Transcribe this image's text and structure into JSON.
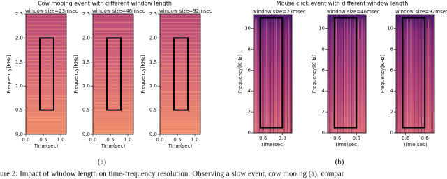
{
  "figures": [
    {
      "title": "Cow mooing event with different window length",
      "label": "(a)",
      "xlabel": "Time(sec)",
      "ylabel": "Frequency[KHz]",
      "xlim": [
        0,
        1.16
      ],
      "ylim": [
        0,
        2.5
      ],
      "xticks": [
        {
          "value": 0,
          "label": "0.0"
        },
        {
          "value": 0.5,
          "label": "0.5"
        },
        {
          "value": 1,
          "label": "1.0"
        }
      ],
      "yticks": [
        {
          "value": 0,
          "label": "0.0"
        },
        {
          "value": 0.5,
          "label": "0.5"
        },
        {
          "value": 1,
          "label": "1.0"
        },
        {
          "value": 1.5,
          "label": "1.5"
        },
        {
          "value": 2,
          "label": "2.0"
        },
        {
          "value": 2.5,
          "label": "2.5"
        }
      ],
      "box": {
        "x": [
          0.4,
          0.8
        ],
        "y": [
          0.5,
          2.0
        ]
      },
      "panels": [
        {
          "title": "window size=23msec"
        },
        {
          "title": "window size=46msec"
        },
        {
          "title": "window size=92msec"
        }
      ]
    },
    {
      "title": "Mouse click event with different window length",
      "label": "(b)",
      "xlabel": "Time(sec)",
      "ylabel": "Frequency[KHz]",
      "xlim": [
        0.5,
        0.9
      ],
      "ylim": [
        0,
        11.3
      ],
      "xticks": [
        {
          "value": 0.6,
          "label": "0.6"
        },
        {
          "value": 0.8,
          "label": "0.8"
        }
      ],
      "yticks": [
        0,
        2,
        4,
        6,
        8,
        10
      ],
      "box": {
        "x": [
          0.57,
          0.8
        ],
        "y": [
          0.5,
          11
        ]
      },
      "panels": [
        {
          "title": "window size=23msec"
        },
        {
          "title": "window size=46msec"
        },
        {
          "title": "window size=92msec"
        }
      ]
    }
  ],
  "caption": "ure 2: Impact of window length on time-frequency resolution: Observing a slow event, cow mooing (a), compar"
}
